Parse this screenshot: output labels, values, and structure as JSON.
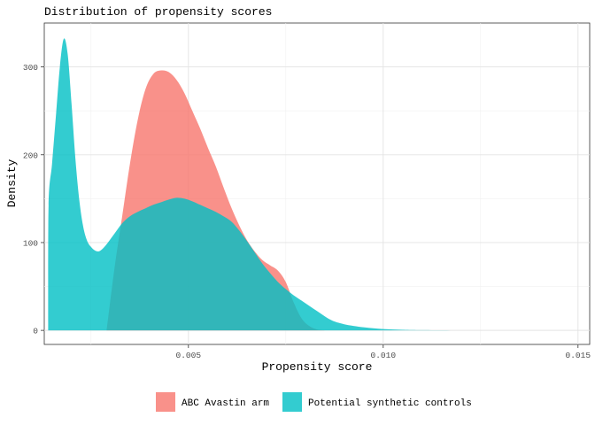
{
  "chart_data": {
    "type": "area",
    "title": "Distribution of propensity scores",
    "xlabel": "Propensity score",
    "ylabel": "Density",
    "xlim": [
      0.0013,
      0.0153
    ],
    "ylim": [
      -16,
      350
    ],
    "x_ticks": [
      0.005,
      0.01,
      0.015
    ],
    "x_tick_labels": [
      "0.005",
      "0.010",
      "0.015"
    ],
    "y_ticks": [
      0,
      100,
      200,
      300
    ],
    "y_tick_labels": [
      "0",
      "100",
      "200",
      "300"
    ],
    "grid": true,
    "legend_position": "bottom",
    "series": [
      {
        "name": "ABC Avastin arm",
        "color": "#F8766D",
        "x": [
          0.0029,
          0.0031,
          0.0033,
          0.0035,
          0.0037,
          0.0039,
          0.0041,
          0.0043,
          0.0045,
          0.0047,
          0.0049,
          0.0051,
          0.0053,
          0.0055,
          0.0057,
          0.0059,
          0.0061,
          0.0063,
          0.0065,
          0.0067,
          0.0069,
          0.0071,
          0.0073,
          0.0075,
          0.0077,
          0.0079,
          0.0081,
          0.0083,
          0.0085
        ],
        "y": [
          0,
          70,
          130,
          190,
          240,
          275,
          292,
          296,
          294,
          285,
          270,
          250,
          230,
          208,
          187,
          163,
          140,
          120,
          103,
          90,
          80,
          74,
          68,
          55,
          32,
          14,
          5,
          1,
          0
        ]
      },
      {
        "name": "Potential synthetic controls",
        "color": "#00BFC4",
        "x": [
          0.0014,
          0.00141,
          0.0015,
          0.0016,
          0.0017,
          0.0018,
          0.0019,
          0.002,
          0.0021,
          0.0022,
          0.0023,
          0.0024,
          0.0025,
          0.0026,
          0.0027,
          0.0028,
          0.0029,
          0.003,
          0.0031,
          0.0033,
          0.0035,
          0.0037,
          0.0039,
          0.0041,
          0.0043,
          0.0045,
          0.0047,
          0.0049,
          0.0051,
          0.0053,
          0.0055,
          0.0057,
          0.0059,
          0.0061,
          0.0063,
          0.0065,
          0.0067,
          0.0069,
          0.0071,
          0.0073,
          0.0075,
          0.0077,
          0.0079,
          0.0081,
          0.0083,
          0.0085,
          0.0087,
          0.009,
          0.0095,
          0.01,
          0.0105,
          0.011,
          0.012,
          0.013,
          0.014,
          0.015
        ],
        "y": [
          0,
          142,
          190,
          245,
          300,
          332,
          315,
          258,
          195,
          148,
          118,
          102,
          95,
          91,
          90,
          93,
          98,
          104,
          110,
          122,
          130,
          135,
          139,
          143,
          146,
          149,
          151,
          150,
          147,
          143,
          139,
          135,
          130,
          124,
          114,
          102,
          89,
          76,
          65,
          55,
          47,
          40,
          34,
          28,
          22,
          16,
          11,
          7,
          3.5,
          1.5,
          0.6,
          0.2,
          0,
          0,
          0,
          0
        ]
      }
    ]
  }
}
